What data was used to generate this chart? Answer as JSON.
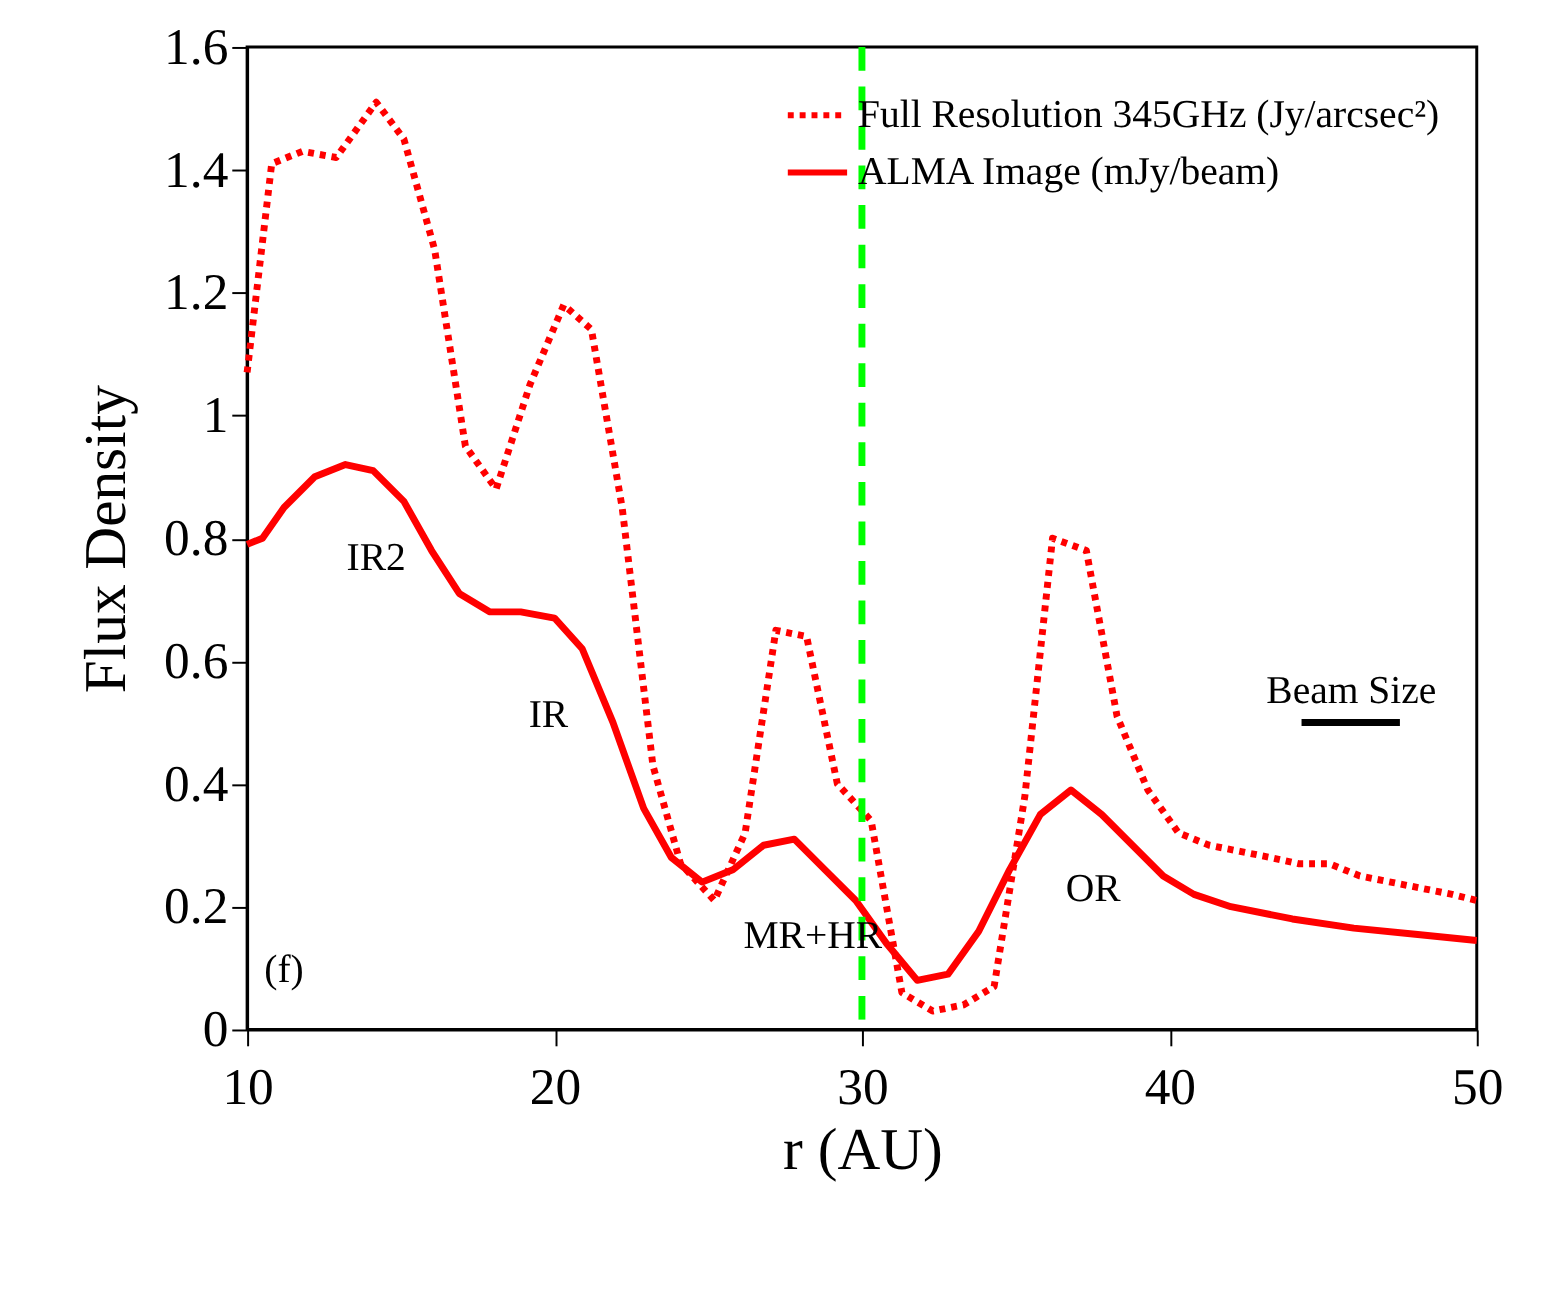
{
  "chart_data": {
    "type": "line",
    "xlabel": "r (AU)",
    "ylabel": "Flux Density",
    "xlim": [
      10,
      50
    ],
    "xticks": [
      10,
      20,
      30,
      40,
      50
    ],
    "ylim": [
      0,
      1.6
    ],
    "yticks": [
      0,
      0.2,
      0.4,
      0.6,
      0.8,
      1,
      1.2,
      1.4,
      1.6
    ],
    "grid": false,
    "legend": "top right",
    "series": [
      {
        "name": "Full Resolution 345GHz (Jy/arcsec²)",
        "color": "#ff0000",
        "line_style": "dotted",
        "x": [
          10,
          10.8,
          11.8,
          12.9,
          14.2,
          15.1,
          16.1,
          17.1,
          18.1,
          19.2,
          20.3,
          21.2,
          22.2,
          23.2,
          24.1,
          25.2,
          26.2,
          27.2,
          28.2,
          29.2,
          30.3,
          31.3,
          32.3,
          33.3,
          34.3,
          35.3,
          36.2,
          37.3,
          38.3,
          39.3,
          40.3,
          41.3,
          42.3,
          43.3,
          44.2,
          45.2,
          46.2,
          47.2,
          48.2,
          49.2,
          50
        ],
        "values": [
          1.07,
          1.41,
          1.43,
          1.42,
          1.51,
          1.45,
          1.27,
          0.95,
          0.88,
          1.05,
          1.18,
          1.14,
          0.85,
          0.43,
          0.27,
          0.21,
          0.32,
          0.65,
          0.64,
          0.4,
          0.34,
          0.06,
          0.03,
          0.04,
          0.07,
          0.38,
          0.8,
          0.78,
          0.51,
          0.39,
          0.32,
          0.3,
          0.29,
          0.28,
          0.27,
          0.27,
          0.25,
          0.24,
          0.23,
          0.22,
          0.21
        ]
      },
      {
        "name": "ALMA Image (mJy/beam)",
        "color": "#ff0000",
        "line_style": "solid",
        "x": [
          10,
          10.5,
          11.2,
          12.2,
          13.2,
          14.1,
          15.1,
          16,
          16.9,
          17.9,
          18.9,
          20,
          20.9,
          21.9,
          22.9,
          23.8,
          24.8,
          25.8,
          26.8,
          27.8,
          28.8,
          29.8,
          30.8,
          31.8,
          32.8,
          33.8,
          34.8,
          35.8,
          36.8,
          37.8,
          38.8,
          39.8,
          40.8,
          42,
          44,
          46,
          48,
          50
        ],
        "values": [
          0.79,
          0.8,
          0.85,
          0.9,
          0.92,
          0.91,
          0.86,
          0.78,
          0.71,
          0.68,
          0.68,
          0.67,
          0.62,
          0.5,
          0.36,
          0.28,
          0.24,
          0.26,
          0.3,
          0.31,
          0.26,
          0.21,
          0.14,
          0.08,
          0.09,
          0.16,
          0.26,
          0.35,
          0.39,
          0.35,
          0.3,
          0.25,
          0.22,
          0.2,
          0.18,
          0.165,
          0.155,
          0.145
        ]
      },
      {
        "color": "#000000",
        "line_style": "solid",
        "x": [
          44.3,
          47.5
        ],
        "values": [
          0.5,
          0.5
        ]
      }
    ],
    "ref_lines": [
      {
        "axis": "x",
        "value": 30,
        "color": "#00ff00",
        "line_style": "dashed"
      }
    ],
    "annotations": [
      "IR2",
      "IR",
      "MR+HR",
      "OR",
      "(f)",
      "Beam Size"
    ]
  }
}
